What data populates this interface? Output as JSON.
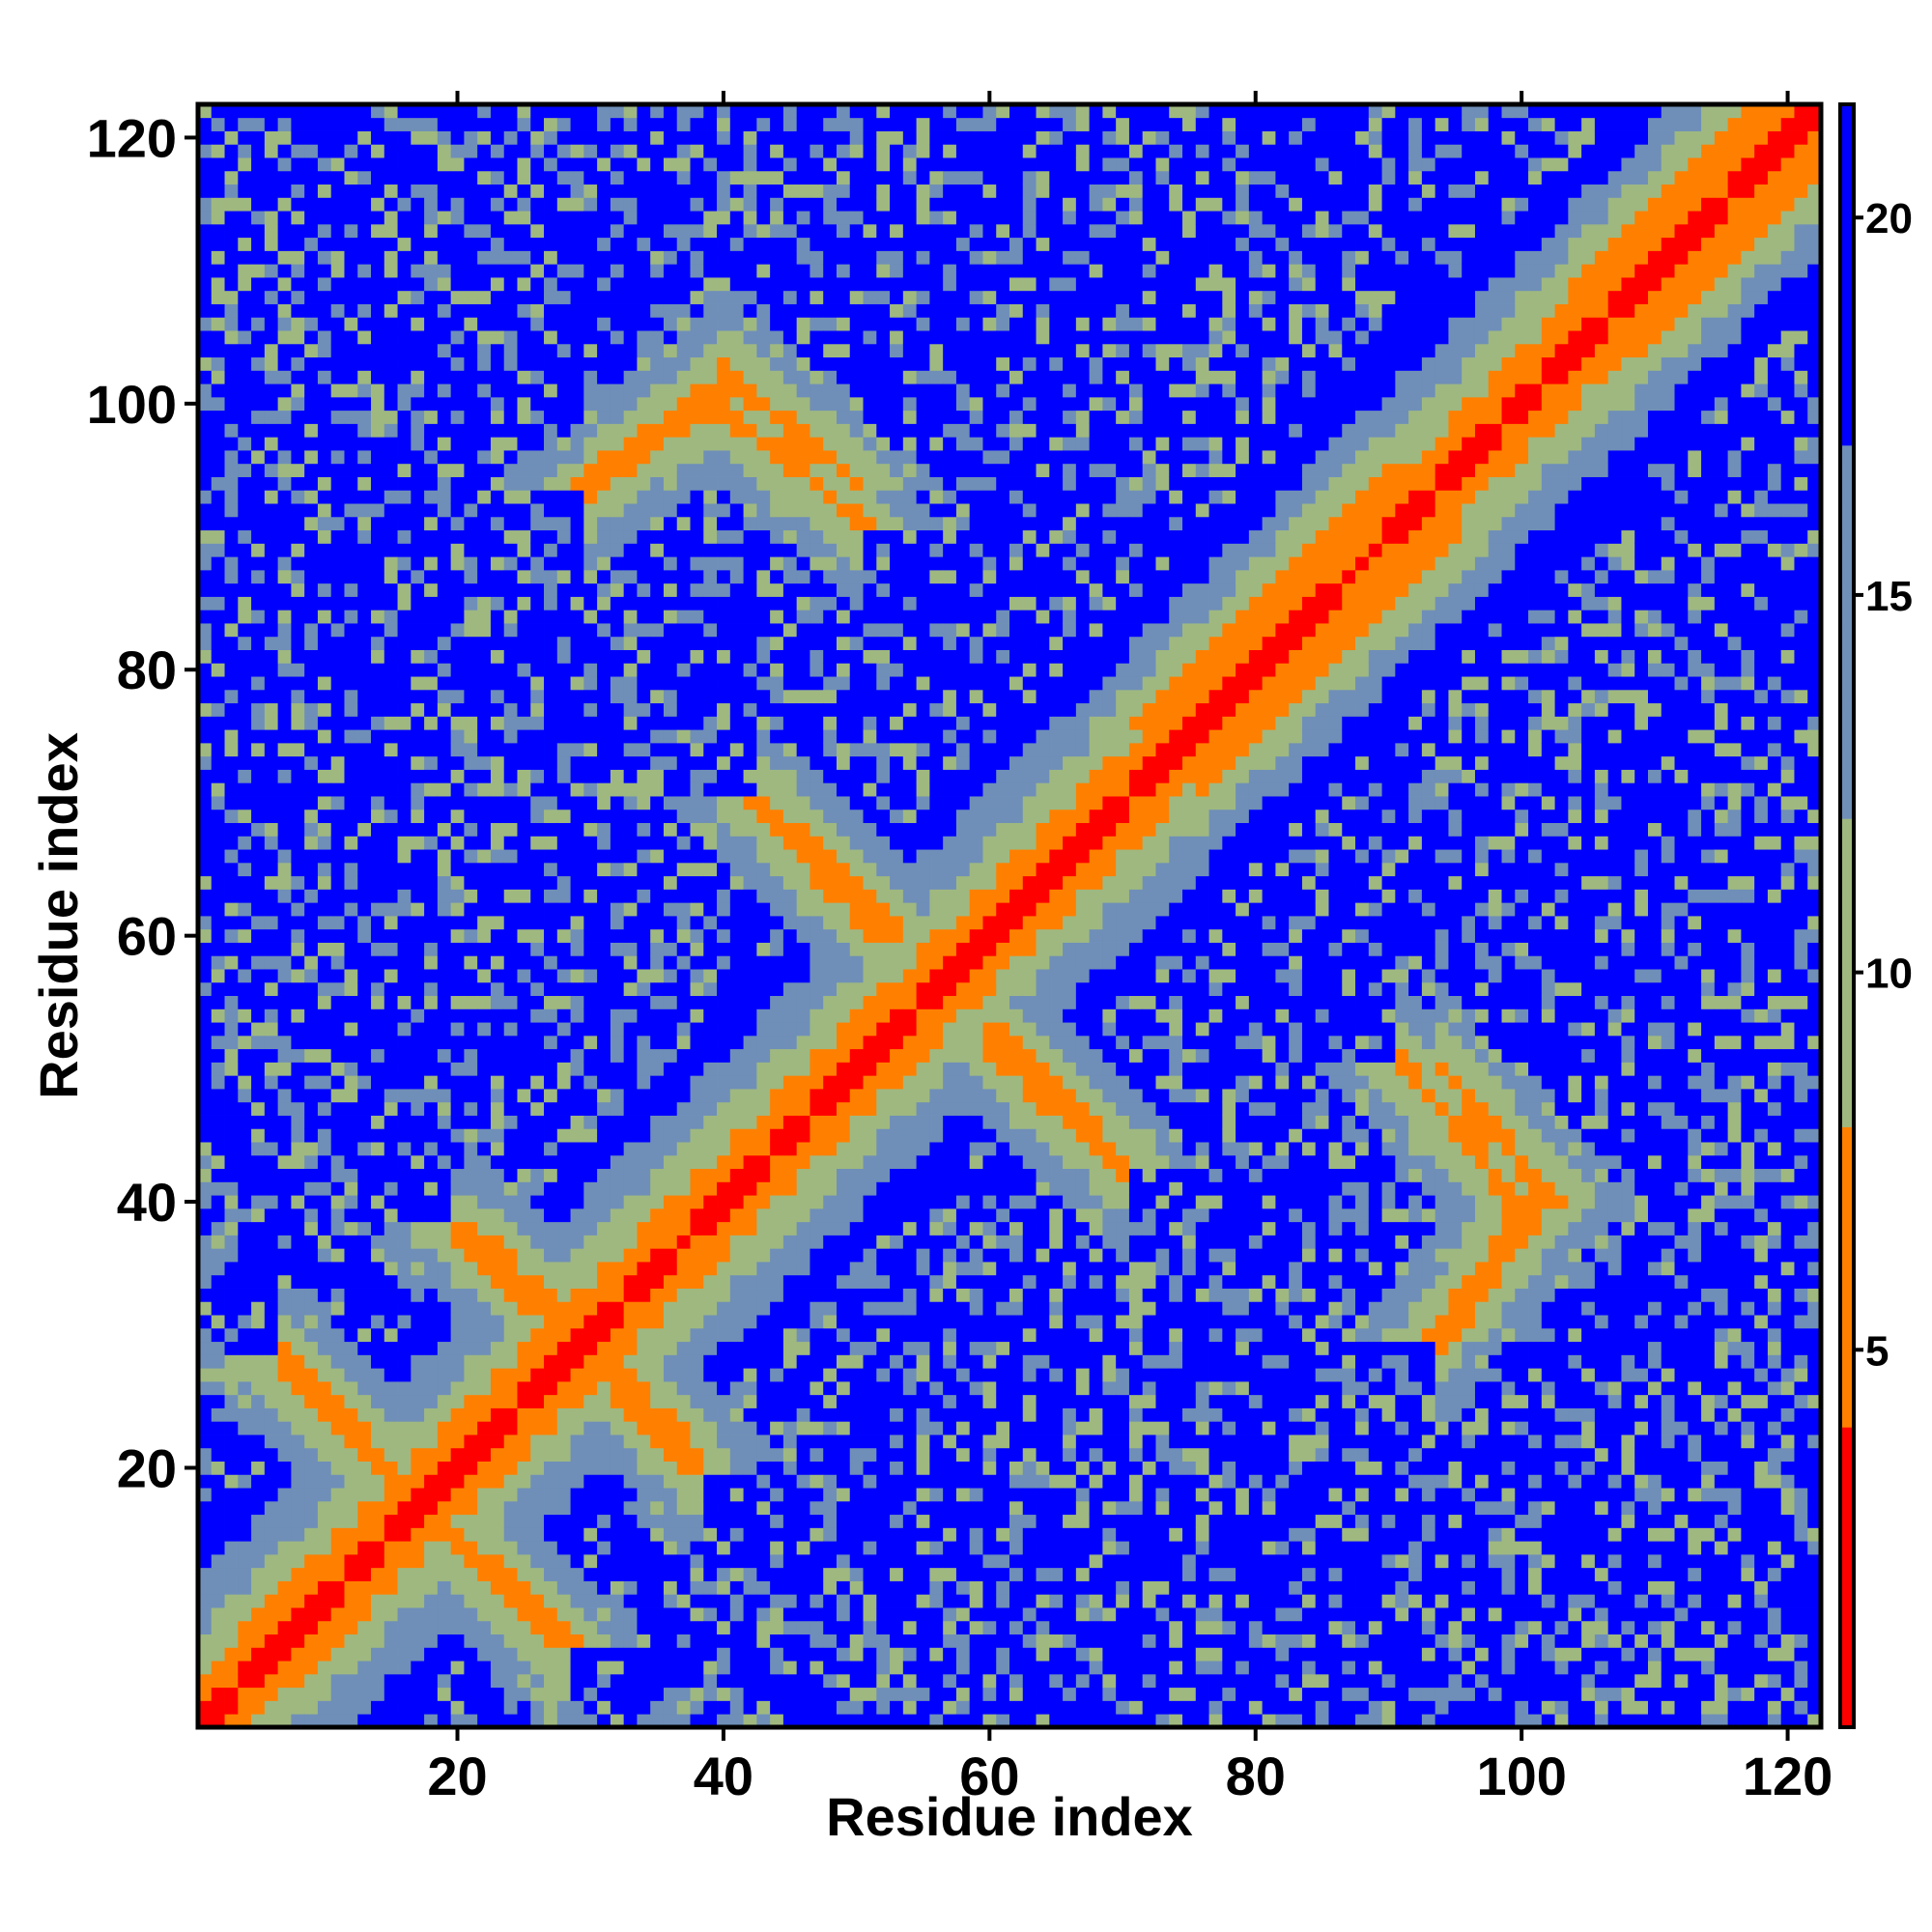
{
  "chart_data": {
    "type": "heatmap",
    "title": "",
    "xlabel": "Residue index",
    "ylabel": "Residue index",
    "xlim": [
      1,
      122
    ],
    "ylim": [
      1,
      122
    ],
    "xticks": [
      20,
      40,
      60,
      80,
      100,
      120
    ],
    "yticks": [
      20,
      40,
      60,
      80,
      100,
      120
    ],
    "colorbar": {
      "range": [
        0,
        21.5
      ],
      "ticks": [
        5,
        10,
        15,
        20
      ],
      "placement": "right",
      "colors": {
        "contact": "#ff0000",
        "close": "#ff8000",
        "medium": "#9fb880",
        "far": "#6f8fb8",
        "none": "#0000ff"
      }
    },
    "symmetric": true,
    "diagonal_distance_values": [
      1,
      3,
      5
    ],
    "secondary_structure_bands": [
      {
        "kind": "antiparallel",
        "i_range": [
          7,
          16
        ],
        "j_range": [
          28,
          19
        ],
        "value": 6
      },
      {
        "kind": "antiparallel",
        "i_range": [
          18,
          27
        ],
        "j_range": [
          16,
          7
        ],
        "value": 6
      },
      {
        "kind": "antiparallel",
        "i_range": [
          21,
          29
        ],
        "j_range": [
          38,
          30
        ],
        "value": 6
      },
      {
        "kind": "antiparallel",
        "i_range": [
          30,
          37
        ],
        "j_range": [
          28,
          20
        ],
        "value": 6
      },
      {
        "kind": "antiparallel",
        "i_range": [
          43,
          52
        ],
        "j_range": [
          70,
          60
        ],
        "value": 6
      },
      {
        "kind": "antiparallel",
        "i_range": [
          60,
          69
        ],
        "j_range": [
          53,
          43
        ],
        "value": 6
      },
      {
        "kind": "antiparallel",
        "i_range": [
          30,
          41
        ],
        "j_range": [
          94,
          102
        ],
        "value": 6
      },
      {
        "kind": "antiparallel",
        "i_range": [
          40,
          50
        ],
        "j_range": [
          100,
          91
        ],
        "value": 6
      },
      {
        "kind": "antiparallel",
        "i_range": [
          94,
          101
        ],
        "j_range": [
          30,
          40
        ],
        "value": 6
      },
      {
        "kind": "antiparallel",
        "i_range": [
          94,
          102
        ],
        "j_range": [
          50,
          40
        ],
        "value": 6
      },
      {
        "kind": "parallel_helix",
        "i_range": [
          72,
          90
        ],
        "j_range": [
          76,
          94
        ],
        "value": 5
      },
      {
        "kind": "parallel_helix",
        "i_range": [
          104,
          120
        ],
        "j_range": [
          108,
          124
        ],
        "value": 5
      }
    ]
  }
}
